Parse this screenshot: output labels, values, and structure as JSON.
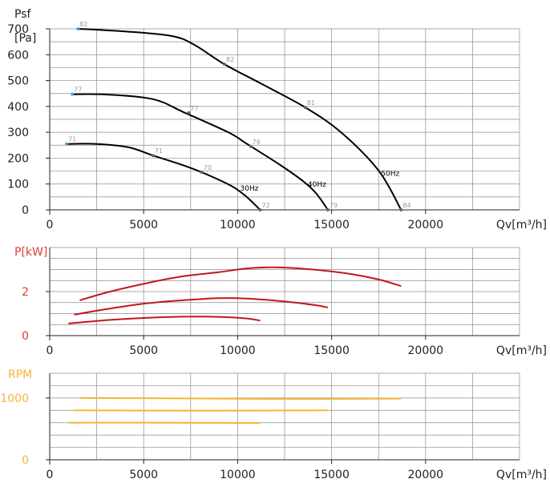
{
  "chart_data": [
    {
      "type": "line",
      "ylabel": "Psf",
      "yunit": "[Pa]",
      "xlabel": "Qv[m³/h]",
      "xlim": [
        0,
        25000
      ],
      "ylim": [
        0,
        700
      ],
      "xticks": [
        0,
        5000,
        10000,
        15000,
        20000
      ],
      "yticks": [
        0,
        100,
        200,
        300,
        400,
        500,
        600,
        700
      ],
      "grid": true,
      "series": [
        {
          "name": "50Hz",
          "color": "#000000",
          "points": [
            [
              1500,
              700
            ],
            [
              4000,
              690
            ],
            [
              6500,
              672
            ],
            [
              7700,
              638
            ],
            [
              9300,
              563
            ],
            [
              11200,
              490
            ],
            [
              13600,
              396
            ],
            [
              15500,
              300
            ],
            [
              17500,
              152
            ],
            [
              18700,
              0
            ]
          ],
          "markers": [
            {
              "x": 1500,
              "y": 700,
              "label": "82"
            },
            {
              "x": 9300,
              "y": 563,
              "label": "82"
            },
            {
              "x": 13600,
              "y": 396,
              "label": "81"
            },
            {
              "x": 18700,
              "y": 0,
              "label": "84"
            }
          ]
        },
        {
          "name": "40Hz",
          "color": "#000000",
          "points": [
            [
              1200,
              447
            ],
            [
              3000,
              446
            ],
            [
              5500,
              428
            ],
            [
              7200,
              375
            ],
            [
              9500,
              300
            ],
            [
              10500,
              255
            ],
            [
              12300,
              172
            ],
            [
              13500,
              110
            ],
            [
              14200,
              62
            ],
            [
              14800,
              0
            ]
          ],
          "markers": [
            {
              "x": 1200,
              "y": 447,
              "label": "77"
            },
            {
              "x": 7400,
              "y": 375,
              "label": "77"
            },
            {
              "x": 10700,
              "y": 245,
              "label": "76"
            },
            {
              "x": 14800,
              "y": 0,
              "label": "79"
            }
          ]
        },
        {
          "name": "30Hz",
          "color": "#000000",
          "points": [
            [
              900,
              255
            ],
            [
              2500,
              255
            ],
            [
              4200,
              242
            ],
            [
              5500,
              210
            ],
            [
              7000,
              175
            ],
            [
              8100,
              145
            ],
            [
              9600,
              95
            ],
            [
              10400,
              55
            ],
            [
              11200,
              0
            ]
          ],
          "markers": [
            {
              "x": 900,
              "y": 255,
              "label": "71"
            },
            {
              "x": 5500,
              "y": 210,
              "label": "71"
            },
            {
              "x": 8100,
              "y": 145,
              "label": "70"
            },
            {
              "x": 11200,
              "y": 0,
              "label": "72"
            }
          ]
        }
      ]
    },
    {
      "type": "line",
      "ylabel": "P[kW]",
      "xlabel": "Qv[m³/h]",
      "xlim": [
        0,
        25000
      ],
      "ylim": [
        0,
        4
      ],
      "xticks": [
        0,
        5000,
        10000,
        15000,
        20000
      ],
      "yticks": [
        0,
        2
      ],
      "ylabel_color": "#e03c31",
      "grid": true,
      "series": [
        {
          "color": "#c0181b",
          "points": [
            [
              1600,
              1.6
            ],
            [
              3000,
              1.95
            ],
            [
              5000,
              2.35
            ],
            [
              7000,
              2.68
            ],
            [
              9000,
              2.88
            ],
            [
              10500,
              3.05
            ],
            [
              12000,
              3.1
            ],
            [
              14000,
              3.0
            ],
            [
              16000,
              2.8
            ],
            [
              17500,
              2.55
            ],
            [
              18700,
              2.25
            ]
          ]
        },
        {
          "color": "#c0181b",
          "points": [
            [
              1300,
              0.95
            ],
            [
              3000,
              1.2
            ],
            [
              5000,
              1.45
            ],
            [
              7000,
              1.6
            ],
            [
              9000,
              1.7
            ],
            [
              10500,
              1.68
            ],
            [
              12500,
              1.55
            ],
            [
              14000,
              1.4
            ],
            [
              14800,
              1.28
            ]
          ]
        },
        {
          "color": "#c0181b",
          "points": [
            [
              1000,
              0.55
            ],
            [
              3000,
              0.7
            ],
            [
              5000,
              0.8
            ],
            [
              7000,
              0.86
            ],
            [
              9000,
              0.85
            ],
            [
              10500,
              0.78
            ],
            [
              11200,
              0.68
            ]
          ]
        }
      ]
    },
    {
      "type": "line",
      "ylabel": "RPM",
      "xlabel": "Qv[m³/h]",
      "xlim": [
        0,
        25000
      ],
      "ylim": [
        0,
        1400
      ],
      "xticks": [
        0,
        5000,
        10000,
        15000,
        20000
      ],
      "yticks": [
        0,
        1000
      ],
      "ylabel_color": "#f4b43c",
      "grid": true,
      "series": [
        {
          "color": "#f5b731",
          "points": [
            [
              1600,
              1000
            ],
            [
              6000,
              995
            ],
            [
              12000,
              985
            ],
            [
              18700,
              990
            ]
          ]
        },
        {
          "color": "#f5b731",
          "points": [
            [
              1300,
              800
            ],
            [
              8000,
              795
            ],
            [
              14800,
              800
            ]
          ]
        },
        {
          "color": "#f5b731",
          "points": [
            [
              1000,
              600
            ],
            [
              6000,
              600
            ],
            [
              11200,
              595
            ]
          ]
        }
      ]
    }
  ]
}
